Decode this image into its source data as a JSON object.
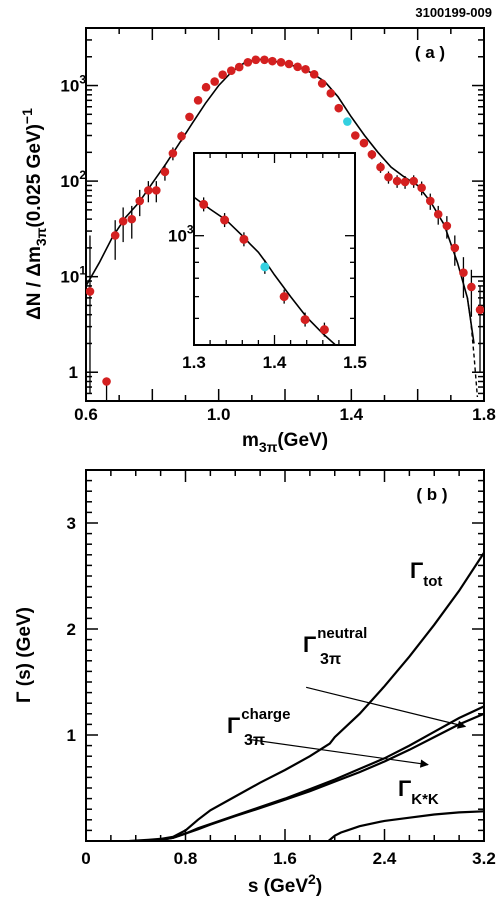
{
  "figure_id": "3100199-009",
  "chart_data": [
    {
      "type": "scatter",
      "panel_label": "( a )",
      "xlabel": "m",
      "xlabel_sub": "3π",
      "xlabel_unit": "(GeV)",
      "ylabel": "ΔN / Δm",
      "ylabel_sub": "3π",
      "ylabel_unit": "(0.025 GeV)",
      "ylabel_sup": "−1",
      "xlim": [
        0.6,
        1.8
      ],
      "ylim": [
        0.5,
        4000
      ],
      "yscale": "log",
      "xticks": [
        "0.6",
        "1.0",
        "1.4",
        "1.8"
      ],
      "yticks": [
        "1",
        "10",
        "10",
        "10"
      ],
      "yticks_exp": [
        "",
        "1",
        "2",
        "3"
      ],
      "marker_colors": {
        "data": "#d42020",
        "highlight": "#33d0e0",
        "fit": "#000000"
      },
      "series": [
        {
          "x": [
            0.612,
            0.662,
            0.688,
            0.712,
            0.738,
            0.762,
            0.788,
            0.812,
            0.838,
            0.862,
            0.888,
            0.912,
            0.938,
            0.962,
            0.988,
            1.012,
            1.038,
            1.062,
            1.088,
            1.112,
            1.138,
            1.162,
            1.188,
            1.212,
            1.238,
            1.262,
            1.288,
            1.312,
            1.338,
            1.362,
            1.388,
            1.412,
            1.438,
            1.462,
            1.488,
            1.512,
            1.538,
            1.562,
            1.588,
            1.612,
            1.638,
            1.662,
            1.688,
            1.712,
            1.738,
            1.762,
            1.788
          ],
          "y": [
            7,
            0.8,
            27,
            38,
            40,
            62,
            80,
            80,
            125,
            195,
            295,
            470,
            700,
            960,
            1100,
            1300,
            1430,
            1560,
            1750,
            1860,
            1860,
            1800,
            1750,
            1680,
            1570,
            1480,
            1310,
            1050,
            830,
            580,
            420,
            300,
            250,
            190,
            140,
            110,
            100,
            98,
            100,
            85,
            62,
            45,
            34,
            20,
            11,
            7.8,
            4.5
          ],
          "yerr_lo": [
            6.4,
            0.8,
            12,
            15,
            15,
            19,
            20,
            20,
            24,
            30,
            35,
            40,
            48,
            52,
            56,
            60,
            62,
            64,
            66,
            68,
            68,
            67,
            66,
            65,
            63,
            61,
            58,
            52,
            46,
            38,
            32,
            26,
            24,
            21,
            18,
            16,
            15,
            15,
            15,
            14,
            12,
            10,
            9,
            7,
            5,
            4,
            3.5
          ],
          "yerr_hi": [
            20,
            0,
            12,
            15,
            15,
            19,
            20,
            20,
            24,
            30,
            35,
            40,
            48,
            52,
            56,
            60,
            62,
            64,
            66,
            68,
            68,
            67,
            66,
            65,
            63,
            61,
            58,
            52,
            46,
            38,
            32,
            26,
            24,
            21,
            18,
            16,
            15,
            15,
            15,
            14,
            12,
            10,
            9,
            7,
            5,
            4,
            3.5
          ],
          "highlight_index": 30
        }
      ],
      "fit_curve": {
        "x": [
          0.6,
          0.64,
          0.68,
          0.72,
          0.76,
          0.8,
          0.84,
          0.88,
          0.92,
          0.96,
          1.0,
          1.04,
          1.08,
          1.12,
          1.16,
          1.2,
          1.24,
          1.28,
          1.32,
          1.36,
          1.4,
          1.44,
          1.48,
          1.52,
          1.56,
          1.6,
          1.64,
          1.68,
          1.72,
          1.75,
          1.77
        ],
        "y": [
          8,
          14,
          26,
          42,
          60,
          95,
          150,
          245,
          400,
          650,
          1000,
          1400,
          1750,
          1880,
          1820,
          1700,
          1560,
          1360,
          1100,
          760,
          470,
          300,
          200,
          140,
          110,
          90,
          60,
          35,
          14,
          6,
          2
        ],
        "dashed_from_x": 1.75,
        "dashed": {
          "x": [
            1.75,
            1.76,
            1.77,
            1.78
          ],
          "y": [
            6,
            3.5,
            1.5,
            0.55
          ]
        }
      },
      "inset": {
        "xlim": [
          1.3,
          1.5
        ],
        "ylim": [
          400,
          2000
        ],
        "yscale": "log",
        "xticks": [
          "1.3",
          "1.4",
          "1.5"
        ],
        "ytick": "10",
        "ytick_exp": "3",
        "points": {
          "x": [
            1.312,
            1.338,
            1.362,
            1.388,
            1.412,
            1.438,
            1.462
          ],
          "y": [
            1300,
            1140,
            970,
            770,
            600,
            495,
            455
          ]
        },
        "highlight_index": 3,
        "curve": {
          "x": [
            1.3,
            1.32,
            1.34,
            1.36,
            1.37,
            1.38,
            1.39,
            1.4,
            1.42,
            1.44,
            1.46,
            1.48
          ],
          "y": [
            1380,
            1250,
            1140,
            1000,
            930,
            870,
            795,
            720,
            600,
            505,
            440,
            390
          ]
        }
      }
    },
    {
      "type": "line",
      "panel_label": "( b )",
      "xlabel": "s (GeV",
      "xlabel_sup": "2",
      "xlabel_end": ")",
      "ylabel": "Γ (s) (GeV)",
      "xlim": [
        0,
        3.2
      ],
      "ylim": [
        0,
        3.5
      ],
      "xticks": [
        "0",
        "0.8",
        "1.6",
        "2.4",
        "3.2"
      ],
      "yticks": [
        "1",
        "2",
        "3"
      ],
      "series": [
        {
          "name": "tot",
          "x": [
            0.35,
            0.5,
            0.6,
            0.7,
            0.8,
            0.9,
            1.0,
            1.2,
            1.4,
            1.6,
            1.8,
            1.96,
            2.0,
            2.2,
            2.4,
            2.6,
            2.8,
            3.0,
            3.2
          ],
          "y": [
            0,
            0.01,
            0.02,
            0.04,
            0.1,
            0.2,
            0.29,
            0.42,
            0.55,
            0.67,
            0.8,
            0.92,
            0.98,
            1.2,
            1.46,
            1.74,
            2.04,
            2.36,
            2.72
          ]
        },
        {
          "name": "neutral",
          "x": [
            0.4,
            0.6,
            0.7,
            0.8,
            0.9,
            1.0,
            1.2,
            1.4,
            1.6,
            1.8,
            2.0,
            2.2,
            2.4,
            2.6,
            2.8,
            3.0,
            3.2
          ],
          "y": [
            0,
            0.01,
            0.03,
            0.07,
            0.12,
            0.16,
            0.24,
            0.32,
            0.4,
            0.49,
            0.58,
            0.68,
            0.78,
            0.9,
            1.03,
            1.16,
            1.27
          ]
        },
        {
          "name": "charge",
          "x": [
            0.4,
            0.6,
            0.7,
            0.8,
            0.9,
            1.0,
            1.2,
            1.4,
            1.6,
            1.8,
            2.0,
            2.2,
            2.4,
            2.6,
            2.8,
            3.0,
            3.2
          ],
          "y": [
            0,
            0.01,
            0.03,
            0.07,
            0.11,
            0.155,
            0.235,
            0.31,
            0.39,
            0.47,
            0.56,
            0.65,
            0.75,
            0.86,
            0.98,
            1.1,
            1.2
          ]
        },
        {
          "name": "K*K",
          "x": [
            1.95,
            2.0,
            2.05,
            2.1,
            2.2,
            2.4,
            2.6,
            2.8,
            3.0,
            3.2
          ],
          "y": [
            0,
            0.05,
            0.08,
            0.1,
            0.14,
            0.19,
            0.22,
            0.25,
            0.27,
            0.28
          ]
        }
      ],
      "annotations": [
        {
          "base": "Γ",
          "sup": "",
          "sub": "tot"
        },
        {
          "base": "Γ",
          "sup": "neutral",
          "sub": "3π"
        },
        {
          "base": "Γ",
          "sup": "charge",
          "sub": "3π"
        },
        {
          "base": "Γ",
          "sup": "",
          "sub": "K*K"
        }
      ],
      "arrows": [
        {
          "from": [
            1.77,
            1.45
          ],
          "to": [
            3.05,
            1.08
          ]
        },
        {
          "from": [
            1.3,
            0.96
          ],
          "to": [
            2.75,
            0.72
          ]
        }
      ]
    }
  ]
}
